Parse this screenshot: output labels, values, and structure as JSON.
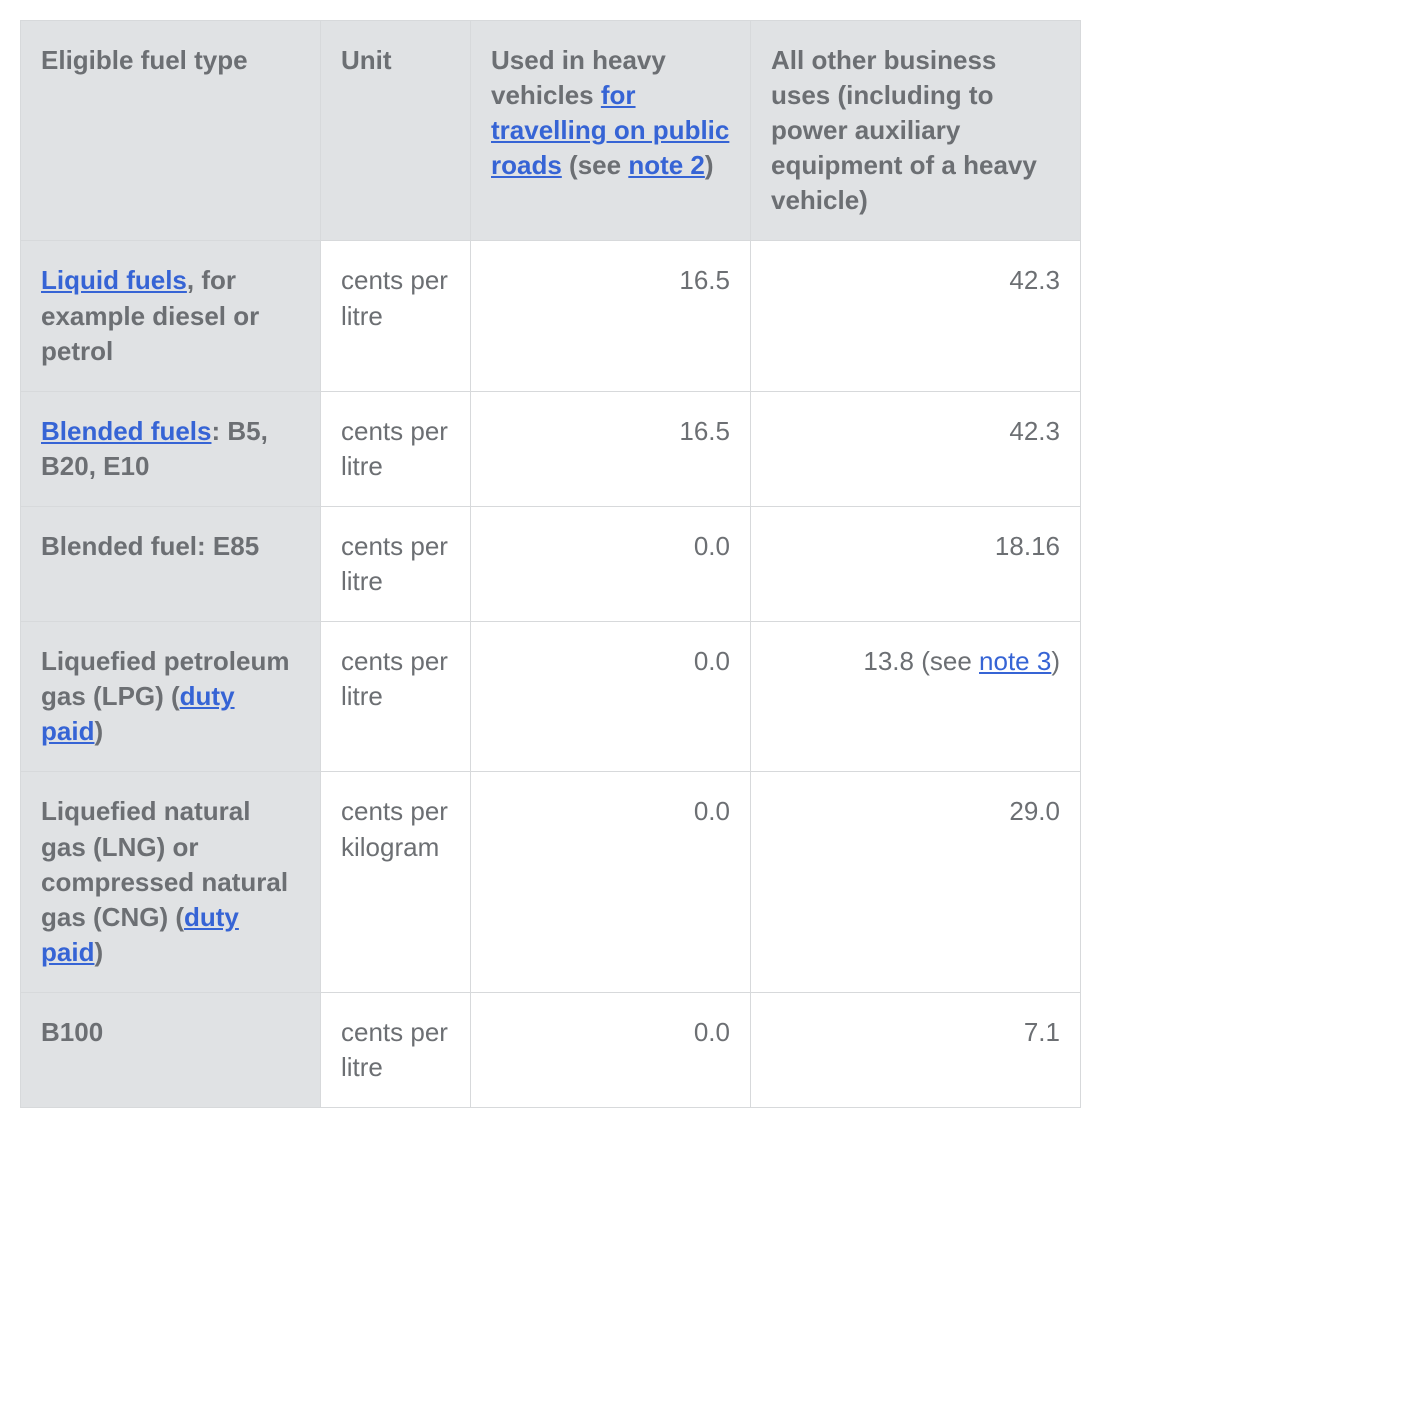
{
  "table": {
    "headers": {
      "col1": "Eligible fuel type",
      "col2": "Unit",
      "col3_pre": "Used in heavy vehicles ",
      "col3_link1": "for travelling on public roads",
      "col3_mid": " (see ",
      "col3_link2": "note 2",
      "col3_post": ")",
      "col4": "All other business uses (including to power auxiliary equipment of a heavy vehicle)"
    },
    "rows": [
      {
        "fuel_link": "Liquid fuels",
        "fuel_rest": ", for example diesel or petrol",
        "unit": "cents per litre",
        "heavy": "16.5",
        "other": "42.3"
      },
      {
        "fuel_link": "Blended fuels",
        "fuel_rest": ": B5, B20, E10",
        "unit": "cents per litre",
        "heavy": "16.5",
        "other": "42.3"
      },
      {
        "fuel_plain": "Blended fuel: E85",
        "unit": "cents per litre",
        "heavy": "0.0",
        "other": "18.16"
      },
      {
        "fuel_pre": "Liquefied petroleum gas (LPG) (",
        "fuel_link": "duty paid",
        "fuel_post": ")",
        "unit": "cents per litre",
        "heavy": "0.0",
        "other_pre": "13.8 (see ",
        "other_link": "note 3",
        "other_post": ")"
      },
      {
        "fuel_pre": "Liquefied natural gas (LNG) or compressed natural gas (CNG) (",
        "fuel_link": "duty paid",
        "fuel_post": ")",
        "unit": "cents per kilogram",
        "heavy": "0.0",
        "other": "29.0"
      },
      {
        "fuel_plain": "B100",
        "unit": "cents per litre",
        "heavy": "0.0",
        "other": "7.1"
      }
    ]
  }
}
